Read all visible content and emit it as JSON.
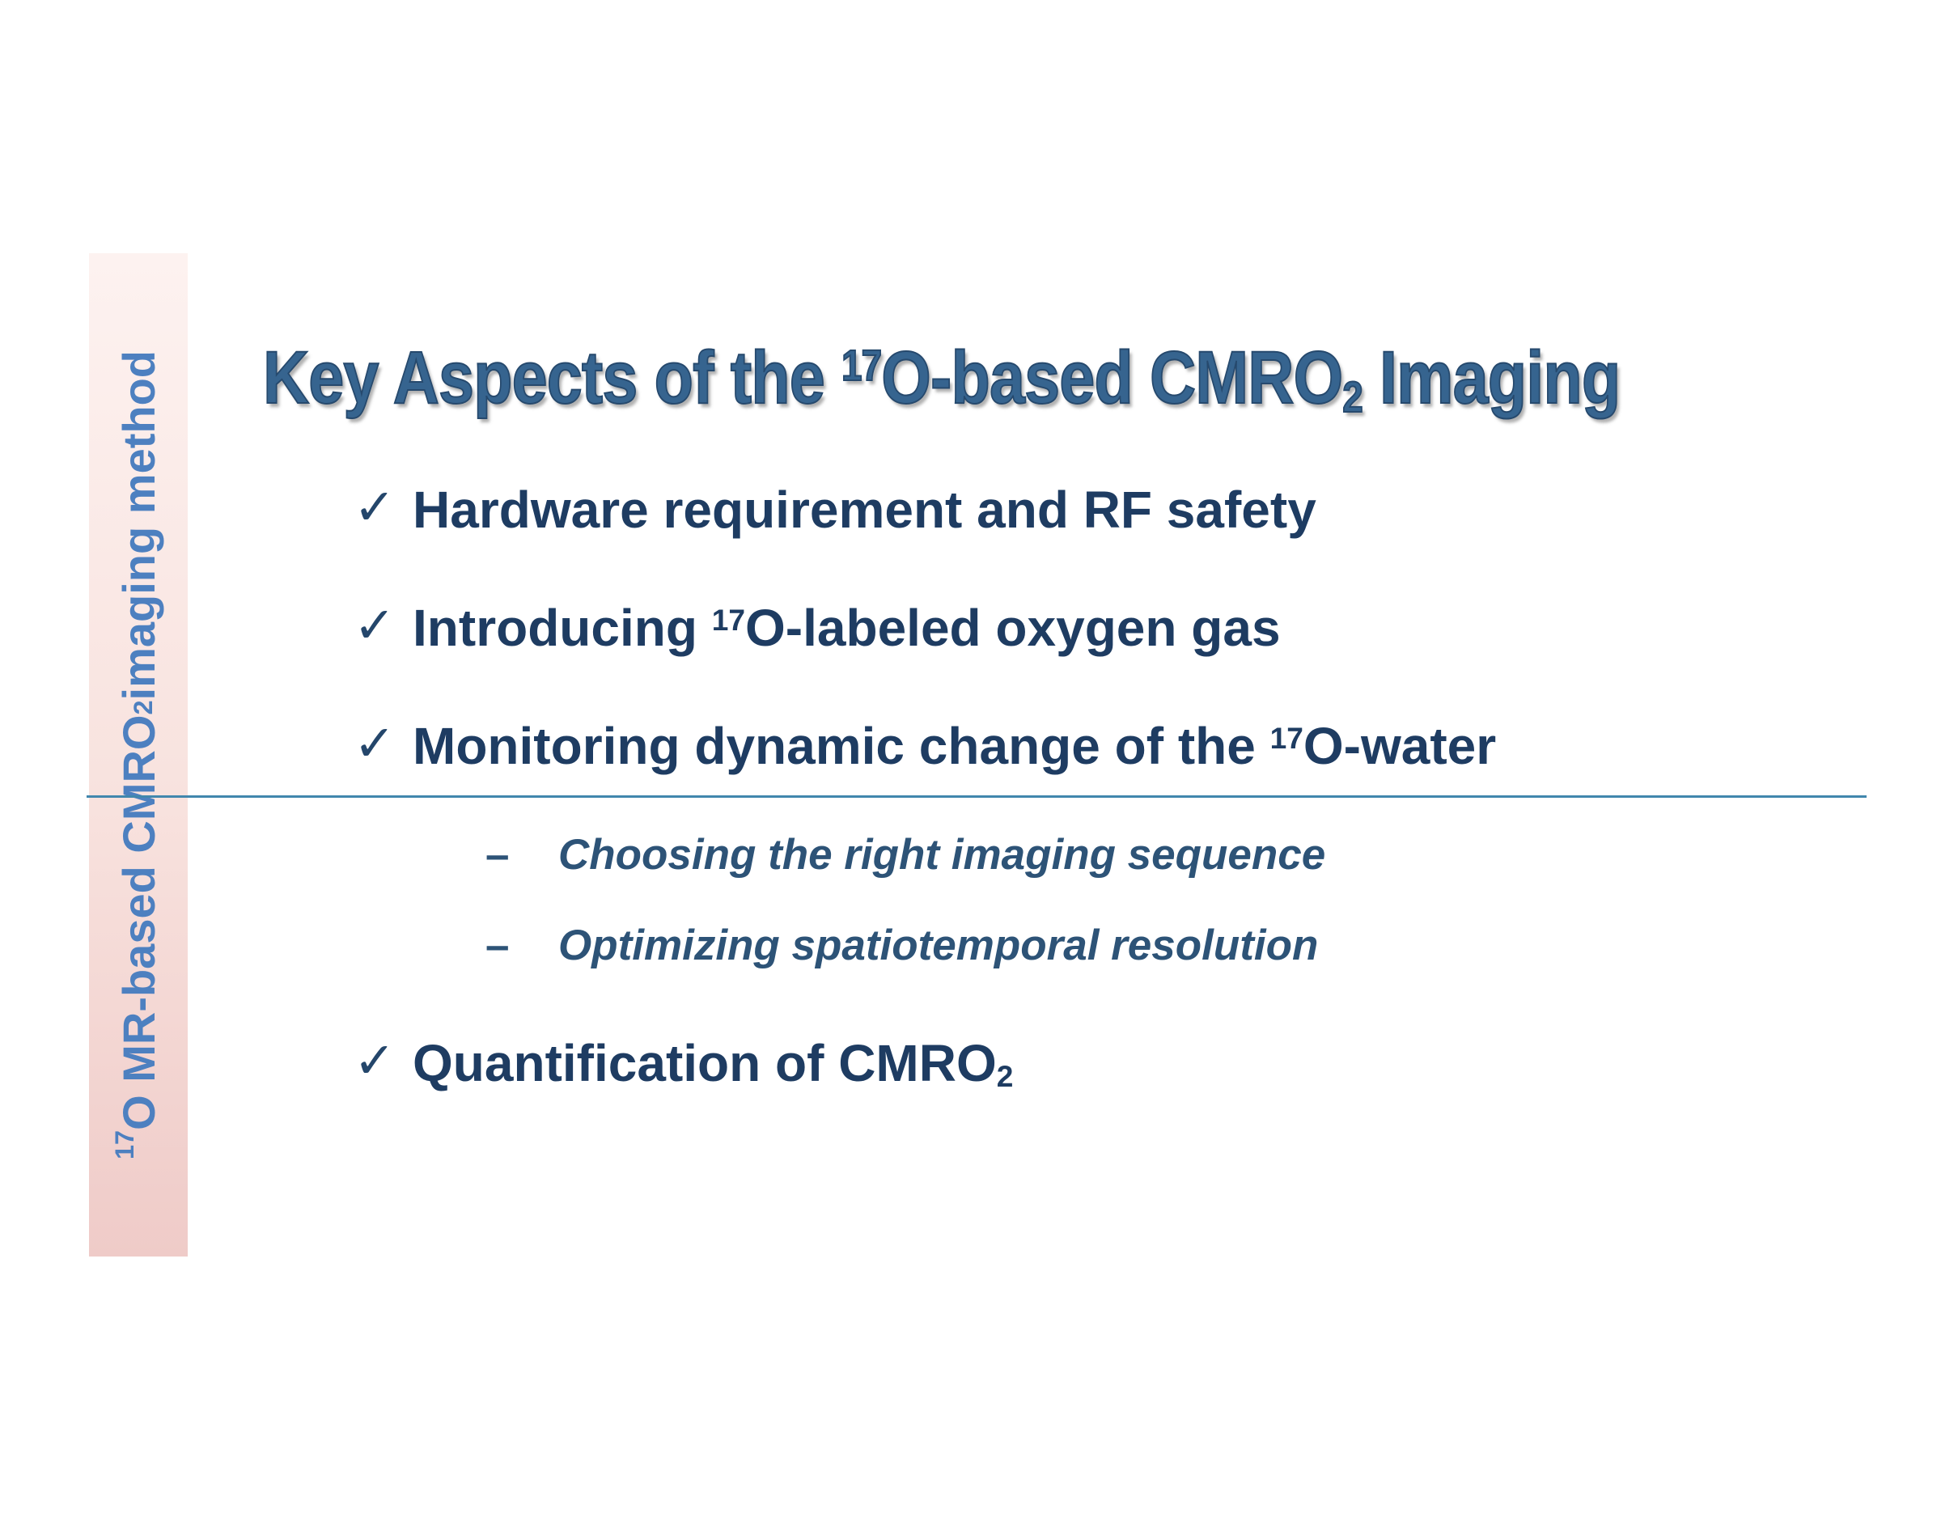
{
  "colors": {
    "background": "#ffffff",
    "title": "#36648f",
    "title_outline": "#26496d",
    "bullet_text": "#1e3c62",
    "sub_bullet_text": "#2d5377",
    "checkmark": "#24466b",
    "divider": "#4187ad",
    "sidebar_text": "#4d80c0",
    "sidebar_bg_top": "#fdf2f0",
    "sidebar_bg_mid": "#f8e2de",
    "sidebar_bg_bottom": "#efcbc8"
  },
  "sidebar": {
    "label_segments": [
      {
        "t": "17",
        "sup": true
      },
      {
        "t": "O MR-based CMRO"
      },
      {
        "t": "2",
        "sub": true
      },
      {
        "t": " imaging method"
      }
    ]
  },
  "title": {
    "segments": [
      {
        "t": "Key Aspects of the "
      },
      {
        "t": "17",
        "sup": true
      },
      {
        "t": "O-based CMRO"
      },
      {
        "t": "2",
        "sub": true
      },
      {
        "t": " Imaging"
      }
    ]
  },
  "content": {
    "bullets": [
      {
        "marker": "✓",
        "segments": [
          {
            "t": "Hardware requirement and RF safety"
          }
        ]
      },
      {
        "marker": "✓",
        "segments": [
          {
            "t": "Introducing "
          },
          {
            "t": "17",
            "sup": true
          },
          {
            "t": "O-labeled oxygen gas"
          }
        ]
      },
      {
        "marker": "✓",
        "segments": [
          {
            "t": "Monitoring dynamic change of the "
          },
          {
            "t": "17",
            "sup": true
          },
          {
            "t": "O-water"
          }
        ]
      },
      {
        "marker": "✓",
        "segments": [
          {
            "t": "Quantification of CMRO"
          },
          {
            "t": "2",
            "sub": true
          }
        ]
      }
    ],
    "sub_bullets": [
      {
        "marker": "–",
        "segments": [
          {
            "t": "Choosing the right imaging sequence"
          }
        ]
      },
      {
        "marker": "–",
        "segments": [
          {
            "t": "Optimizing spatiotemporal resolution"
          }
        ]
      }
    ]
  }
}
